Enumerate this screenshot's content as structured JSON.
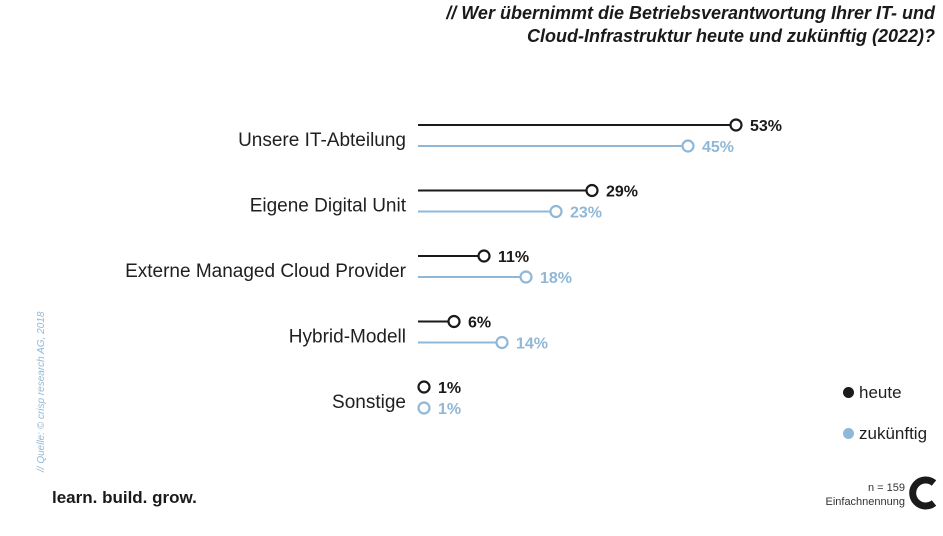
{
  "title": {
    "line1": "// Wer übernimmt die Betriebsverantwortung Ihrer IT- und",
    "line2": "Cloud-Infrastruktur heute und zukünftig (2022)?"
  },
  "chart_data": {
    "type": "lollipop",
    "categories": [
      "Unsere IT-Abteilung",
      "Eigene Digital Unit",
      "Externe Managed Cloud Provider",
      "Hybrid-Modell",
      "Sonstige"
    ],
    "series": [
      {
        "name": "heute",
        "values": [
          53,
          29,
          11,
          6,
          1
        ],
        "labels": [
          "53%",
          "29%",
          "11%",
          "6%",
          "1%"
        ],
        "color": "#1a1a1a"
      },
      {
        "name": "zukünftig",
        "values": [
          45,
          23,
          18,
          14,
          1
        ],
        "labels": [
          "45%",
          "23%",
          "18%",
          "14%",
          "1%"
        ],
        "color": "#8fb8d8"
      }
    ],
    "unit": "%",
    "legend_position": "bottom-right"
  },
  "legend": {
    "items": [
      {
        "label": "heute",
        "color": "#1a1a1a"
      },
      {
        "label": "zukünftig",
        "color": "#8fb8d8"
      }
    ]
  },
  "source": "// Quelle: © crisp research AG, 2018",
  "footer": {
    "slogan": "learn. build. grow.",
    "sample": "n = 159",
    "note": "Einfachnennung"
  }
}
